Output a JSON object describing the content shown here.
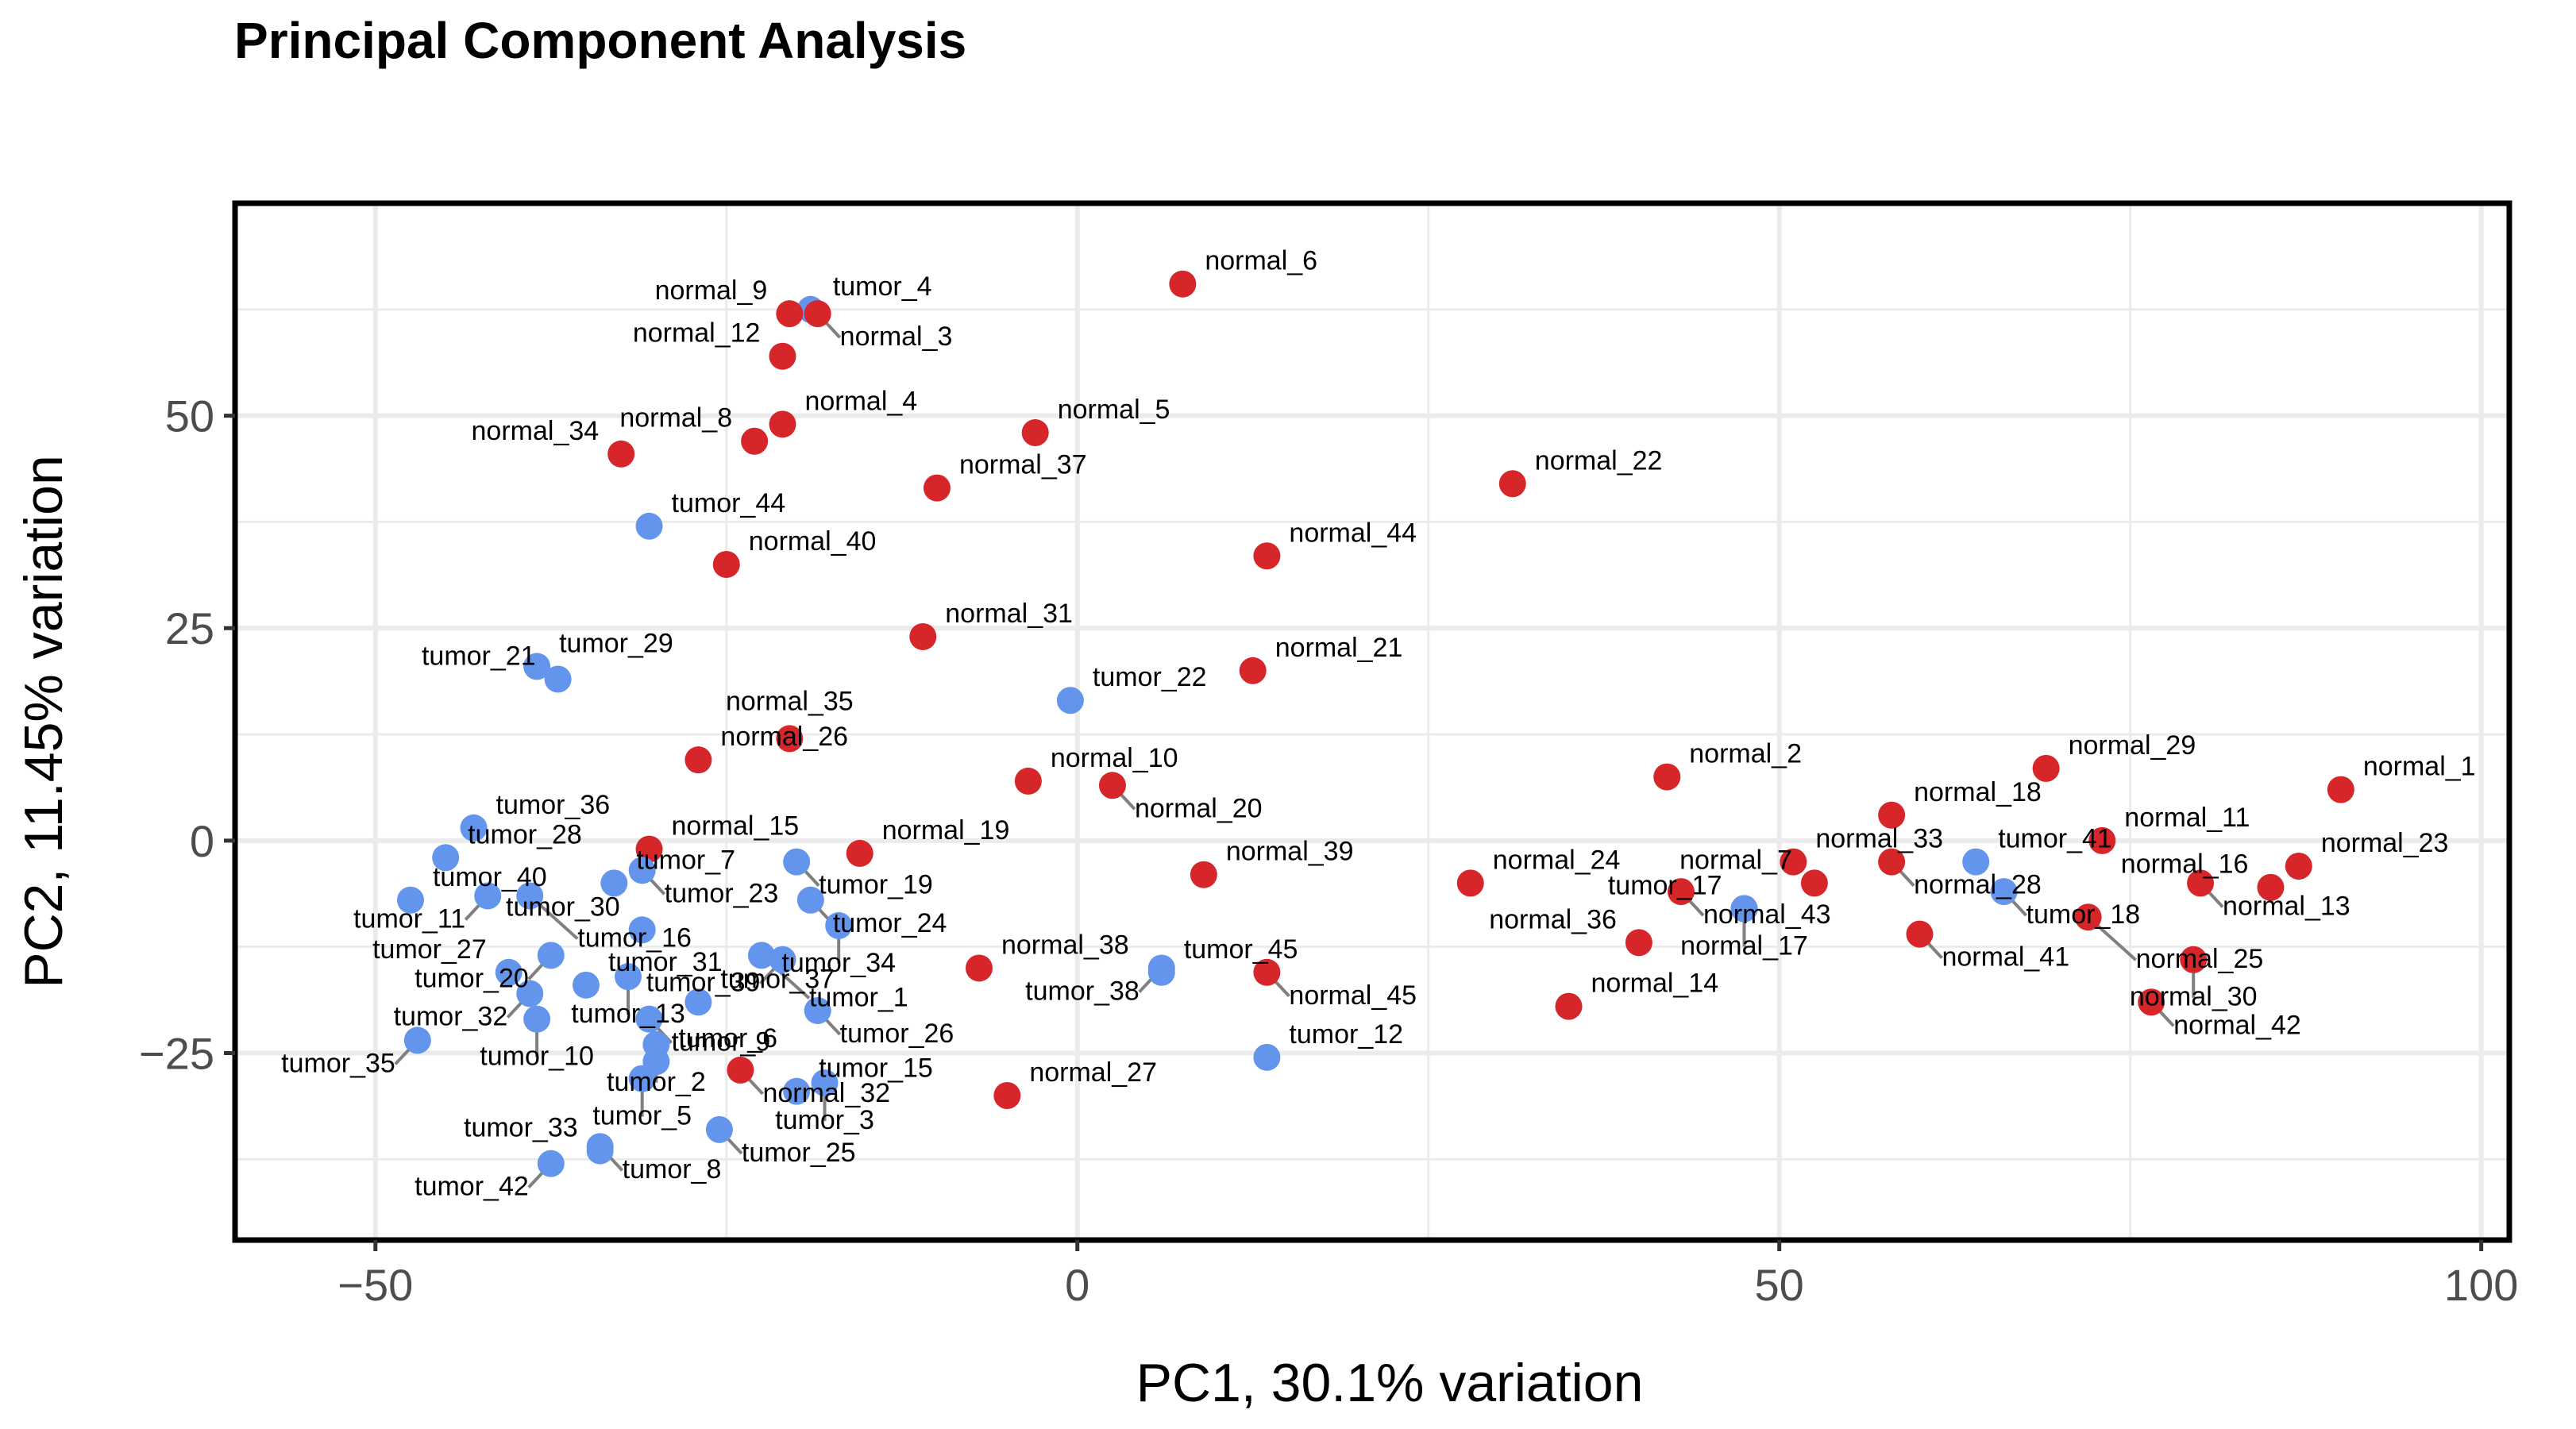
{
  "chart_data": {
    "type": "scatter",
    "title": "Principal Component Analysis",
    "xlabel": "PC1, 30.1% variation",
    "ylabel": "PC2, 11.45% variation",
    "xlim": [
      -60,
      102
    ],
    "ylim": [
      -47,
      75
    ],
    "xticks": [
      -50,
      0,
      50,
      100
    ],
    "yticks": [
      -25,
      0,
      25,
      50
    ],
    "x_tick_labels": [
      "−50",
      "0",
      "50",
      "100"
    ],
    "y_tick_labels": [
      "−25",
      "0",
      "25",
      "50"
    ],
    "grid": true,
    "colors": {
      "normal": "#d7262a",
      "tumor": "#6495ed",
      "leader": "#808080",
      "grid": "#ebebeb"
    },
    "points": [
      {
        "label": "tumor_4",
        "group": "tumor",
        "x": -19,
        "y": 62.5
      },
      {
        "label": "normal_9",
        "group": "normal",
        "x": -20.5,
        "y": 62
      },
      {
        "label": "normal_3",
        "group": "normal",
        "x": -18.5,
        "y": 62
      },
      {
        "label": "normal_12",
        "group": "normal",
        "x": -21,
        "y": 57
      },
      {
        "label": "normal_4",
        "group": "normal",
        "x": -21,
        "y": 49
      },
      {
        "label": "normal_8",
        "group": "normal",
        "x": -23,
        "y": 47
      },
      {
        "label": "normal_34",
        "group": "normal",
        "x": -32.5,
        "y": 45.5
      },
      {
        "label": "normal_5",
        "group": "normal",
        "x": -3,
        "y": 48
      },
      {
        "label": "normal_37",
        "group": "normal",
        "x": -10,
        "y": 41.5
      },
      {
        "label": "normal_6",
        "group": "normal",
        "x": 7.5,
        "y": 65.5
      },
      {
        "label": "normal_22",
        "group": "normal",
        "x": 31,
        "y": 42
      },
      {
        "label": "tumor_44",
        "group": "tumor",
        "x": -30.5,
        "y": 37
      },
      {
        "label": "normal_40",
        "group": "normal",
        "x": -25,
        "y": 32.5
      },
      {
        "label": "normal_44",
        "group": "normal",
        "x": 13.5,
        "y": 33.5
      },
      {
        "label": "normal_31",
        "group": "normal",
        "x": -11,
        "y": 24
      },
      {
        "label": "tumor_29",
        "group": "tumor",
        "x": -38.5,
        "y": 20.5
      },
      {
        "label": "tumor_21",
        "group": "tumor",
        "x": -37,
        "y": 19
      },
      {
        "label": "normal_21",
        "group": "normal",
        "x": 12.5,
        "y": 20
      },
      {
        "label": "tumor_22",
        "group": "tumor",
        "x": -0.5,
        "y": 16.5
      },
      {
        "label": "normal_26",
        "group": "normal",
        "x": -27,
        "y": 9.5
      },
      {
        "label": "normal_35",
        "group": "normal",
        "x": -20.5,
        "y": 12
      },
      {
        "label": "normal_10",
        "group": "normal",
        "x": -3.5,
        "y": 7
      },
      {
        "label": "normal_20",
        "group": "normal",
        "x": 2.5,
        "y": 6.5
      },
      {
        "label": "normal_2",
        "group": "normal",
        "x": 42,
        "y": 7.5
      },
      {
        "label": "normal_29",
        "group": "normal",
        "x": 69,
        "y": 8.5
      },
      {
        "label": "normal_1",
        "group": "normal",
        "x": 90,
        "y": 6
      },
      {
        "label": "tumor_36",
        "group": "tumor",
        "x": -43,
        "y": 1.5
      },
      {
        "label": "normal_18",
        "group": "normal",
        "x": 58,
        "y": 3
      },
      {
        "label": "normal_11",
        "group": "normal",
        "x": 73,
        "y": 0
      },
      {
        "label": "normal_33",
        "group": "normal",
        "x": 51,
        "y": -2.5
      },
      {
        "label": "normal_28",
        "group": "normal",
        "x": 58,
        "y": -2.5
      },
      {
        "label": "tumor_41",
        "group": "tumor",
        "x": 64,
        "y": -2.5
      },
      {
        "label": "normal_23",
        "group": "normal",
        "x": 87,
        "y": -3
      },
      {
        "label": "normal_13",
        "group": "normal",
        "x": 80,
        "y": -5
      },
      {
        "label": "normal_16",
        "group": "normal",
        "x": 85,
        "y": -5.5
      },
      {
        "label": "tumor_18",
        "group": "tumor",
        "x": 66,
        "y": -6
      },
      {
        "label": "normal_15",
        "group": "normal",
        "x": -30.5,
        "y": -1
      },
      {
        "label": "normal_19",
        "group": "normal",
        "x": -15.5,
        "y": -1.5
      },
      {
        "label": "tumor_19",
        "group": "tumor",
        "x": -20,
        "y": -2.5
      },
      {
        "label": "tumor_28",
        "group": "tumor",
        "x": -45,
        "y": -2
      },
      {
        "label": "tumor_23",
        "group": "tumor",
        "x": -31,
        "y": -3.5
      },
      {
        "label": "tumor_7",
        "group": "tumor",
        "x": -33,
        "y": -5
      },
      {
        "label": "tumor_24",
        "group": "tumor",
        "x": -19,
        "y": -7
      },
      {
        "label": "tumor_30",
        "group": "tumor",
        "x": -31,
        "y": -10.5
      },
      {
        "label": "normal_39",
        "group": "normal",
        "x": 9,
        "y": -4
      },
      {
        "label": "normal_24",
        "group": "normal",
        "x": 28,
        "y": -5
      },
      {
        "label": "normal_7",
        "group": "normal",
        "x": 52.5,
        "y": -5
      },
      {
        "label": "normal_43",
        "group": "normal",
        "x": 43,
        "y": -6
      },
      {
        "label": "tumor_40",
        "group": "tumor",
        "x": -47.5,
        "y": -7
      },
      {
        "label": "tumor_16",
        "group": "tumor",
        "x": -39,
        "y": -6.5
      },
      {
        "label": "tumor_11",
        "group": "tumor",
        "x": -42,
        "y": -6.5
      },
      {
        "label": "tumor_34",
        "group": "tumor",
        "x": -17,
        "y": -10
      },
      {
        "label": "tumor_39",
        "group": "tumor",
        "x": -21,
        "y": -14
      },
      {
        "label": "tumor_20",
        "group": "tumor",
        "x": -37.5,
        "y": -13.5
      },
      {
        "label": "normal_17",
        "group": "normal",
        "x": 47.5,
        "y": -8
      },
      {
        "label": "tumor_17",
        "group": "tumor",
        "x": 47.5,
        "y": -8
      },
      {
        "label": "normal_41",
        "group": "normal",
        "x": 60,
        "y": -11
      },
      {
        "label": "normal_25",
        "group": "normal",
        "x": 72,
        "y": -9
      },
      {
        "label": "normal_36",
        "group": "normal",
        "x": 40,
        "y": -12
      },
      {
        "label": "normal_30",
        "group": "normal",
        "x": 79.5,
        "y": -14
      },
      {
        "label": "tumor_27",
        "group": "tumor",
        "x": -40.5,
        "y": -15.5
      },
      {
        "label": "tumor_13",
        "group": "tumor",
        "x": -32,
        "y": -16
      },
      {
        "label": "tumor_1",
        "group": "tumor",
        "x": -22.5,
        "y": -13.5
      },
      {
        "label": "normal_38",
        "group": "normal",
        "x": -7,
        "y": -15
      },
      {
        "label": "tumor_45",
        "group": "tumor",
        "x": 6,
        "y": -15.5
      },
      {
        "label": "normal_45",
        "group": "normal",
        "x": 13.5,
        "y": -15.5
      },
      {
        "label": "tumor_32",
        "group": "tumor",
        "x": -39,
        "y": -18
      },
      {
        "label": "tumor_31",
        "group": "tumor",
        "x": -35,
        "y": -17
      },
      {
        "label": "tumor_9",
        "group": "tumor",
        "x": -30.5,
        "y": -21
      },
      {
        "label": "tumor_10",
        "group": "tumor",
        "x": -38.5,
        "y": -21
      },
      {
        "label": "tumor_37",
        "group": "tumor",
        "x": -27,
        "y": -19
      },
      {
        "label": "tumor_26",
        "group": "tumor",
        "x": -18.5,
        "y": -20
      },
      {
        "label": "tumor_35",
        "group": "tumor",
        "x": -47,
        "y": -23.5
      },
      {
        "label": "tumor_2",
        "group": "tumor",
        "x": -30,
        "y": -24
      },
      {
        "label": "tumor_38",
        "group": "tumor",
        "x": 6,
        "y": -15
      },
      {
        "label": "tumor_12",
        "group": "tumor",
        "x": 13.5,
        "y": -25.5
      },
      {
        "label": "normal_14",
        "group": "normal",
        "x": 35,
        "y": -19.5
      },
      {
        "label": "normal_42",
        "group": "normal",
        "x": 76.5,
        "y": -19
      },
      {
        "label": "tumor_5",
        "group": "tumor",
        "x": -31,
        "y": -28
      },
      {
        "label": "normal_32",
        "group": "normal",
        "x": -24,
        "y": -27
      },
      {
        "label": "tumor_3",
        "group": "tumor",
        "x": -18,
        "y": -28.5
      },
      {
        "label": "normal_27",
        "group": "normal",
        "x": -5,
        "y": -30
      },
      {
        "label": "tumor_15",
        "group": "tumor",
        "x": -20,
        "y": -29.5
      },
      {
        "label": "tumor_6",
        "group": "tumor",
        "x": -30,
        "y": -26
      },
      {
        "label": "tumor_33",
        "group": "tumor",
        "x": -34,
        "y": -36.5
      },
      {
        "label": "tumor_8",
        "group": "tumor",
        "x": -34,
        "y": -36
      },
      {
        "label": "tumor_42",
        "group": "tumor",
        "x": -37.5,
        "y": -38
      },
      {
        "label": "tumor_25",
        "group": "tumor",
        "x": -25.5,
        "y": -34
      }
    ]
  }
}
